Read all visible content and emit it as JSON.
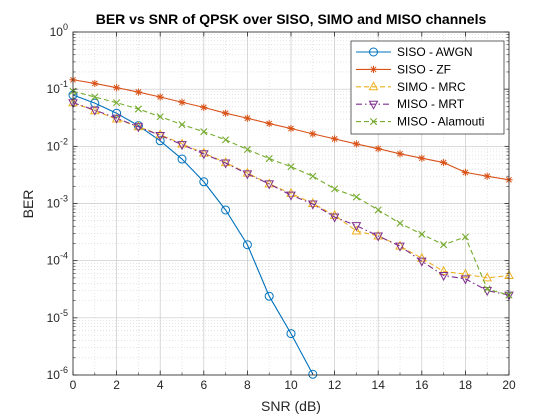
{
  "chart_data": {
    "type": "line",
    "title": "BER vs SNR of QPSK over SISO, SIMO and MISO channels",
    "xlabel": "SNR (dB)",
    "ylabel": "BER",
    "xlim": [
      0,
      20
    ],
    "ylim": [
      1e-06,
      1
    ],
    "y_scale": "log",
    "grid": true,
    "minor_grid": true,
    "legend_position": "top-right",
    "x_ticks": [
      "0",
      "2",
      "4",
      "6",
      "8",
      "10",
      "12",
      "14",
      "16",
      "18",
      "20"
    ],
    "y_ticks": [
      {
        "base": "10",
        "exp": "0"
      },
      {
        "base": "10",
        "exp": "-1"
      },
      {
        "base": "10",
        "exp": "-2"
      },
      {
        "base": "10",
        "exp": "-3"
      },
      {
        "base": "10",
        "exp": "-4"
      },
      {
        "base": "10",
        "exp": "-5"
      },
      {
        "base": "10",
        "exp": "-6"
      }
    ],
    "series": [
      {
        "name": "SISO - AWGN",
        "color": "#0072BD",
        "line": "solid",
        "marker": "circle",
        "x": [
          0,
          1,
          2,
          3,
          4,
          5,
          6,
          7,
          8,
          9,
          10,
          11
        ],
        "y": [
          0.079,
          0.057,
          0.038,
          0.023,
          0.0125,
          0.006,
          0.0024,
          0.00077,
          0.00019,
          2.39e-05,
          5.3e-06,
          1.03e-06
        ]
      },
      {
        "name": "SISO - ZF",
        "color": "#D95319",
        "line": "solid",
        "marker": "star",
        "x": [
          0,
          1,
          2,
          3,
          4,
          5,
          6,
          7,
          8,
          9,
          10,
          11,
          12,
          13,
          14,
          15,
          16,
          17,
          18,
          19,
          20
        ],
        "y": [
          0.146,
          0.126,
          0.106,
          0.089,
          0.073,
          0.059,
          0.048,
          0.038,
          0.031,
          0.025,
          0.0205,
          0.0165,
          0.0135,
          0.011,
          0.0091,
          0.0074,
          0.0062,
          0.0052,
          0.0035,
          0.003,
          0.0026
        ]
      },
      {
        "name": "SIMO - MRC",
        "color": "#EDB120",
        "line": "dashed",
        "marker": "triangle-up",
        "x": [
          0,
          1,
          2,
          3,
          4,
          5,
          6,
          7,
          8,
          9,
          10,
          11,
          12,
          13,
          14,
          15,
          16,
          17,
          18,
          19,
          20
        ],
        "y": [
          0.058,
          0.042,
          0.03,
          0.022,
          0.016,
          0.011,
          0.0076,
          0.0052,
          0.0034,
          0.0022,
          0.0015,
          0.001,
          0.00062,
          0.00033,
          0.00027,
          0.00018,
          0.00011,
          6.5e-05,
          5.8e-05,
          5e-05,
          5.5e-05
        ]
      },
      {
        "name": "MISO - MRT",
        "color": "#7E2F8E",
        "line": "dashdot",
        "marker": "triangle-down",
        "x": [
          0,
          1,
          2,
          3,
          4,
          5,
          6,
          7,
          8,
          9,
          10,
          11,
          12,
          13,
          14,
          15,
          16,
          17,
          18,
          19,
          20
        ],
        "y": [
          0.058,
          0.043,
          0.031,
          0.022,
          0.0155,
          0.0107,
          0.0074,
          0.0051,
          0.0033,
          0.0022,
          0.0014,
          0.00098,
          0.00058,
          0.00041,
          0.00027,
          0.00018,
          9.8e-05,
          5.5e-05,
          4.8e-05,
          3e-05,
          2.5e-05
        ]
      },
      {
        "name": "MISO - Alamouti",
        "color": "#77AC30",
        "line": "dashed",
        "marker": "x",
        "x": [
          0,
          1,
          2,
          3,
          4,
          5,
          6,
          7,
          8,
          9,
          10,
          11,
          12,
          13,
          14,
          15,
          16,
          17,
          18,
          19,
          20
        ],
        "y": [
          0.092,
          0.073,
          0.058,
          0.045,
          0.033,
          0.024,
          0.018,
          0.013,
          0.0088,
          0.0061,
          0.0044,
          0.003,
          0.0018,
          0.0013,
          0.00077,
          0.00045,
          0.00029,
          0.00019,
          0.00026,
          3.2e-05,
          2.5e-05
        ]
      }
    ]
  }
}
